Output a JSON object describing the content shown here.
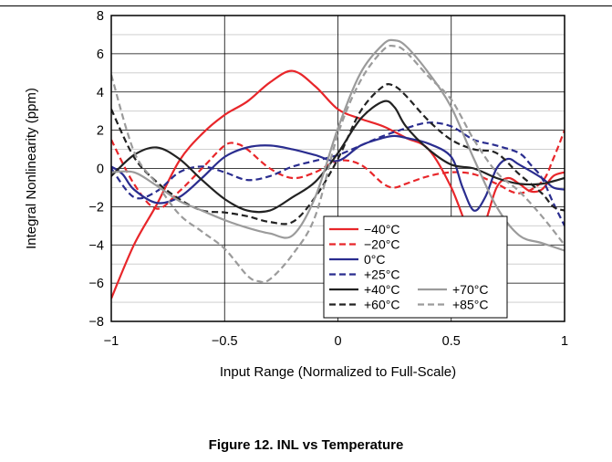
{
  "figure_caption": "Figure 12. INL vs Temperature",
  "chart_data": {
    "type": "line",
    "title": "",
    "xlabel": "Input Range (Normalized to Full-Scale)",
    "ylabel": "Integral Nonlinearity (ppm)",
    "xlim": [
      -1,
      1
    ],
    "ylim": [
      -8,
      8
    ],
    "x_ticks": [
      -1,
      -0.5,
      0,
      0.5,
      1
    ],
    "x_tick_labels": [
      "−1",
      "−0.5",
      "0",
      "0.5",
      "1"
    ],
    "y_ticks": [
      -8,
      -6,
      -4,
      -2,
      0,
      2,
      4,
      6,
      8
    ],
    "y_tick_labels": [
      "−8",
      "−6",
      "−4",
      "−2",
      "0",
      "2",
      "4",
      "6",
      "8"
    ],
    "grid": {
      "x_major": true,
      "y_major": true,
      "y_minor": true
    },
    "legend_position": "lower-right",
    "series": [
      {
        "name": "−40°C",
        "color": "#e8262a",
        "dash": "solid",
        "points": [
          [
            -1,
            -6.8
          ],
          [
            -0.9,
            -4.0
          ],
          [
            -0.8,
            -1.9
          ],
          [
            -0.7,
            0.4
          ],
          [
            -0.6,
            1.8
          ],
          [
            -0.5,
            2.8
          ],
          [
            -0.4,
            3.5
          ],
          [
            -0.3,
            4.5
          ],
          [
            -0.2,
            5.1
          ],
          [
            -0.1,
            4.3
          ],
          [
            0,
            3.1
          ],
          [
            0.1,
            2.6
          ],
          [
            0.2,
            2.2
          ],
          [
            0.3,
            1.6
          ],
          [
            0.4,
            1.0
          ],
          [
            0.5,
            -1.0
          ],
          [
            0.6,
            -3.8
          ],
          [
            0.65,
            -2.8
          ],
          [
            0.7,
            -1.0
          ],
          [
            0.75,
            -0.5
          ],
          [
            0.8,
            -0.8
          ],
          [
            0.85,
            -1.2
          ],
          [
            0.9,
            -1.1
          ],
          [
            0.95,
            -0.4
          ],
          [
            1,
            -0.2
          ]
        ]
      },
      {
        "name": "−20°C",
        "color": "#e8262a",
        "dash": "dashed",
        "points": [
          [
            -1,
            1.5
          ],
          [
            -0.9,
            -0.8
          ],
          [
            -0.8,
            -2.1
          ],
          [
            -0.7,
            -1.2
          ],
          [
            -0.6,
            0.0
          ],
          [
            -0.5,
            1.2
          ],
          [
            -0.45,
            1.3
          ],
          [
            -0.4,
            1.0
          ],
          [
            -0.3,
            0.0
          ],
          [
            -0.2,
            -0.5
          ],
          [
            -0.1,
            -0.2
          ],
          [
            0,
            0.4
          ],
          [
            0.1,
            0.2
          ],
          [
            0.2,
            -0.8
          ],
          [
            0.25,
            -1.0
          ],
          [
            0.3,
            -0.8
          ],
          [
            0.4,
            -0.4
          ],
          [
            0.5,
            -0.2
          ],
          [
            0.6,
            -0.3
          ],
          [
            0.7,
            -0.8
          ],
          [
            0.8,
            -1.3
          ],
          [
            0.9,
            -0.7
          ],
          [
            0.95,
            0.5
          ],
          [
            1,
            2.0
          ]
        ]
      },
      {
        "name": "0°C",
        "color": "#2a2d8f",
        "dash": "solid",
        "points": [
          [
            -1,
            0.1
          ],
          [
            -0.95,
            -0.3
          ],
          [
            -0.9,
            -1.1
          ],
          [
            -0.8,
            -1.8
          ],
          [
            -0.7,
            -1.5
          ],
          [
            -0.6,
            -0.5
          ],
          [
            -0.5,
            0.6
          ],
          [
            -0.4,
            1.1
          ],
          [
            -0.3,
            1.2
          ],
          [
            -0.2,
            1.0
          ],
          [
            -0.1,
            0.7
          ],
          [
            0,
            0.4
          ],
          [
            0.1,
            1.2
          ],
          [
            0.2,
            1.6
          ],
          [
            0.25,
            1.7
          ],
          [
            0.3,
            1.6
          ],
          [
            0.4,
            1.3
          ],
          [
            0.5,
            0.6
          ],
          [
            0.55,
            -1.0
          ],
          [
            0.6,
            -2.2
          ],
          [
            0.65,
            -1.5
          ],
          [
            0.7,
            0.0
          ],
          [
            0.75,
            0.5
          ],
          [
            0.8,
            0.2
          ],
          [
            0.9,
            -0.5
          ],
          [
            0.95,
            -1.0
          ],
          [
            1,
            -1.1
          ]
        ]
      },
      {
        "name": "+25°C",
        "color": "#2a2d8f",
        "dash": "dashed",
        "points": [
          [
            -1,
            0.0
          ],
          [
            -0.9,
            -1.5
          ],
          [
            -0.8,
            -1.2
          ],
          [
            -0.7,
            -0.2
          ],
          [
            -0.6,
            0.1
          ],
          [
            -0.5,
            -0.2
          ],
          [
            -0.4,
            -0.6
          ],
          [
            -0.3,
            -0.4
          ],
          [
            -0.2,
            0.1
          ],
          [
            -0.1,
            0.4
          ],
          [
            0,
            0.7
          ],
          [
            0.1,
            1.2
          ],
          [
            0.2,
            1.7
          ],
          [
            0.3,
            2.1
          ],
          [
            0.4,
            2.4
          ],
          [
            0.5,
            2.2
          ],
          [
            0.6,
            1.5
          ],
          [
            0.7,
            1.2
          ],
          [
            0.8,
            0.8
          ],
          [
            0.85,
            0.2
          ],
          [
            0.9,
            -0.5
          ],
          [
            0.95,
            -1.8
          ],
          [
            1,
            -3.0
          ]
        ]
      },
      {
        "name": "+40°C",
        "color": "#222222",
        "dash": "solid",
        "points": [
          [
            -1,
            -0.4
          ],
          [
            -0.9,
            0.7
          ],
          [
            -0.8,
            1.1
          ],
          [
            -0.7,
            0.5
          ],
          [
            -0.6,
            -0.6
          ],
          [
            -0.5,
            -1.6
          ],
          [
            -0.4,
            -2.2
          ],
          [
            -0.3,
            -2.2
          ],
          [
            -0.2,
            -1.5
          ],
          [
            -0.1,
            -0.7
          ],
          [
            0,
            0.8
          ],
          [
            0.1,
            2.6
          ],
          [
            0.2,
            3.5
          ],
          [
            0.25,
            3.2
          ],
          [
            0.3,
            2.2
          ],
          [
            0.4,
            1.0
          ],
          [
            0.5,
            0.2
          ],
          [
            0.6,
            0.0
          ],
          [
            0.7,
            -0.5
          ],
          [
            0.8,
            -0.8
          ],
          [
            0.9,
            -0.8
          ],
          [
            1,
            -0.5
          ]
        ]
      },
      {
        "name": "+60°C",
        "color": "#222222",
        "dash": "dashed",
        "points": [
          [
            -1,
            3.1
          ],
          [
            -0.9,
            0.6
          ],
          [
            -0.8,
            -0.7
          ],
          [
            -0.7,
            -1.6
          ],
          [
            -0.6,
            -2.2
          ],
          [
            -0.5,
            -2.3
          ],
          [
            -0.4,
            -2.5
          ],
          [
            -0.3,
            -2.8
          ],
          [
            -0.2,
            -2.8
          ],
          [
            -0.1,
            -1.5
          ],
          [
            0,
            0.5
          ],
          [
            0.1,
            3.0
          ],
          [
            0.2,
            4.3
          ],
          [
            0.25,
            4.3
          ],
          [
            0.3,
            3.8
          ],
          [
            0.4,
            2.5
          ],
          [
            0.5,
            1.5
          ],
          [
            0.6,
            1.0
          ],
          [
            0.7,
            0.8
          ],
          [
            0.8,
            -0.3
          ],
          [
            0.9,
            -1.3
          ],
          [
            0.95,
            -2.0
          ],
          [
            1,
            -2.2
          ]
        ]
      },
      {
        "name": "+70°C",
        "color": "#9b9b9b",
        "dash": "solid",
        "points": [
          [
            -1,
            -0.2
          ],
          [
            -0.9,
            -0.2
          ],
          [
            -0.8,
            -0.9
          ],
          [
            -0.7,
            -1.7
          ],
          [
            -0.6,
            -2.2
          ],
          [
            -0.5,
            -2.7
          ],
          [
            -0.4,
            -3.1
          ],
          [
            -0.3,
            -3.4
          ],
          [
            -0.2,
            -3.5
          ],
          [
            -0.1,
            -1.5
          ],
          [
            0,
            2.1
          ],
          [
            0.1,
            5.0
          ],
          [
            0.2,
            6.5
          ],
          [
            0.25,
            6.7
          ],
          [
            0.3,
            6.4
          ],
          [
            0.4,
            5.0
          ],
          [
            0.5,
            3.2
          ],
          [
            0.6,
            0.5
          ],
          [
            0.7,
            -2.0
          ],
          [
            0.8,
            -3.5
          ],
          [
            0.9,
            -3.9
          ],
          [
            1,
            -4.3
          ]
        ]
      },
      {
        "name": "+85°C",
        "color": "#9b9b9b",
        "dash": "dashed",
        "points": [
          [
            -1,
            4.9
          ],
          [
            -0.9,
            0.9
          ],
          [
            -0.8,
            -0.8
          ],
          [
            -0.7,
            -2.4
          ],
          [
            -0.6,
            -3.3
          ],
          [
            -0.5,
            -4.2
          ],
          [
            -0.4,
            -5.6
          ],
          [
            -0.35,
            -5.9
          ],
          [
            -0.3,
            -5.8
          ],
          [
            -0.2,
            -4.5
          ],
          [
            -0.1,
            -2.5
          ],
          [
            0,
            1.8
          ],
          [
            0.1,
            4.6
          ],
          [
            0.2,
            6.2
          ],
          [
            0.25,
            6.4
          ],
          [
            0.3,
            6.1
          ],
          [
            0.4,
            4.8
          ],
          [
            0.5,
            3.6
          ],
          [
            0.6,
            1.5
          ],
          [
            0.7,
            -0.2
          ],
          [
            0.8,
            -1.2
          ],
          [
            0.9,
            -2.5
          ],
          [
            1,
            -4.0
          ]
        ]
      }
    ]
  }
}
